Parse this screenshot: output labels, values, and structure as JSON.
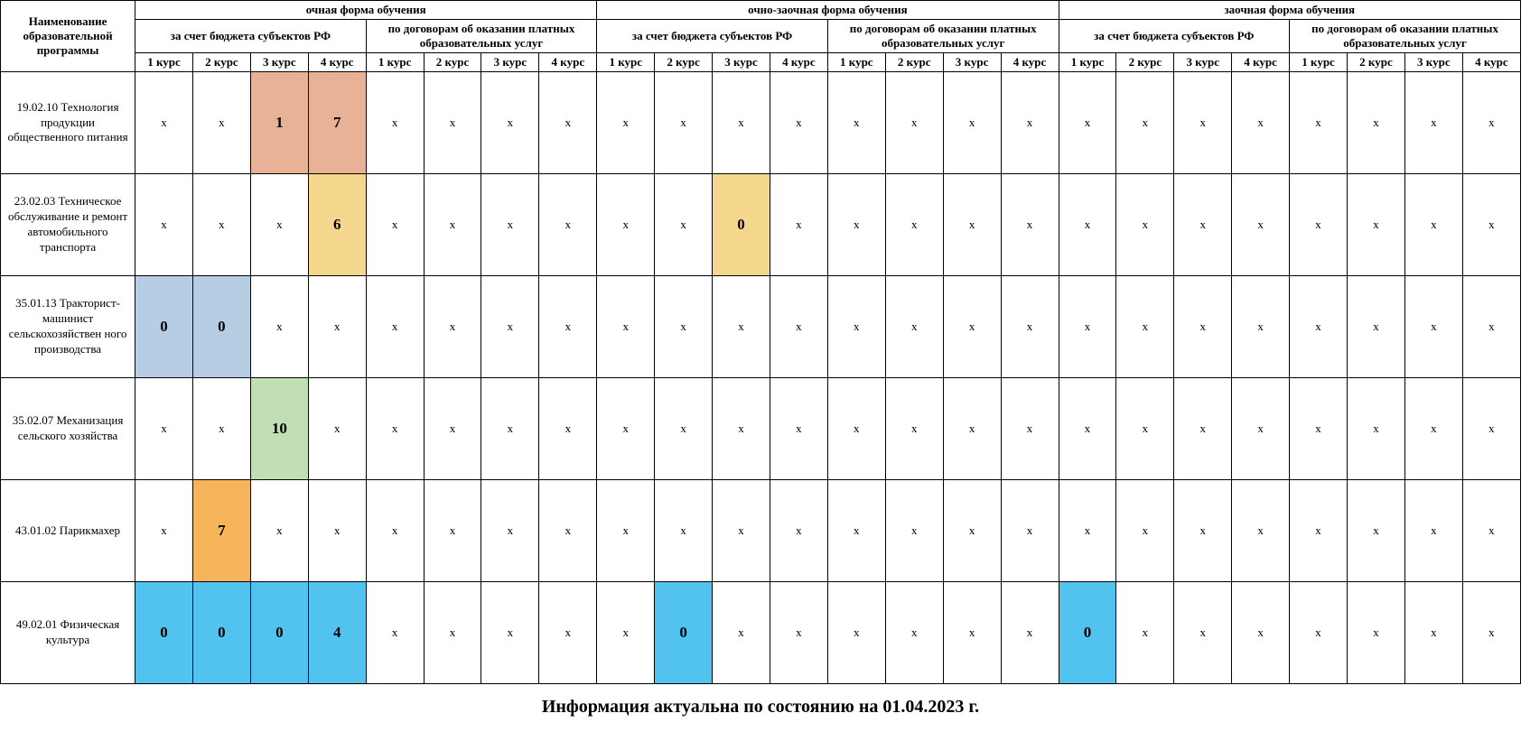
{
  "headers": {
    "program": "Наименование образовательной программы",
    "forms": [
      "очная форма обучения",
      "очно-заочная форма обучения",
      "заочная форма обучения"
    ],
    "funding": [
      "за счет бюджета субъектов РФ",
      "по договорам об оказании платных образовательных услуг"
    ],
    "courses": [
      "1 курс",
      "2 курс",
      "3 курс",
      "4 курс"
    ]
  },
  "cell_colors": {
    "salmon": "#e8b296",
    "peach": "#f6d78e",
    "blue": "#b7cde4",
    "green": "#c0dfb4",
    "orange": "#f6b55a",
    "cyan": "#52c3ef"
  },
  "x": "x",
  "rows": [
    {
      "label": "19.02.10 Технология продукции общественного питания",
      "cells": [
        {
          "v": "x"
        },
        {
          "v": "x"
        },
        {
          "v": "1",
          "c": "salmon",
          "bold": true
        },
        {
          "v": "7",
          "c": "salmon",
          "bold": true
        },
        {
          "v": "x"
        },
        {
          "v": "x"
        },
        {
          "v": "x"
        },
        {
          "v": "x"
        },
        {
          "v": "x"
        },
        {
          "v": "x"
        },
        {
          "v": "x"
        },
        {
          "v": "x"
        },
        {
          "v": "x"
        },
        {
          "v": "x"
        },
        {
          "v": "x"
        },
        {
          "v": "x"
        },
        {
          "v": "x"
        },
        {
          "v": "x"
        },
        {
          "v": "x"
        },
        {
          "v": "x"
        },
        {
          "v": "x"
        },
        {
          "v": "x"
        },
        {
          "v": "x"
        },
        {
          "v": "x"
        }
      ]
    },
    {
      "label": "23.02.03 Техническое обслуживание и ремонт автомобильного транспорта",
      "cells": [
        {
          "v": "x"
        },
        {
          "v": "x"
        },
        {
          "v": "x"
        },
        {
          "v": "6",
          "c": "peach",
          "bold": true
        },
        {
          "v": "x"
        },
        {
          "v": "x"
        },
        {
          "v": "x"
        },
        {
          "v": "x"
        },
        {
          "v": "x"
        },
        {
          "v": "x"
        },
        {
          "v": "0",
          "c": "peach",
          "bold": true
        },
        {
          "v": "x"
        },
        {
          "v": "x"
        },
        {
          "v": "x"
        },
        {
          "v": "x"
        },
        {
          "v": "x"
        },
        {
          "v": "x"
        },
        {
          "v": "x"
        },
        {
          "v": "x"
        },
        {
          "v": "x"
        },
        {
          "v": "x"
        },
        {
          "v": "x"
        },
        {
          "v": "x"
        },
        {
          "v": "x"
        }
      ]
    },
    {
      "label": "35.01.13 Тракторист-машинист сельскохозяйствен ного производства",
      "cells": [
        {
          "v": "0",
          "c": "blue",
          "bold": true
        },
        {
          "v": "0",
          "c": "blue",
          "bold": true
        },
        {
          "v": "x"
        },
        {
          "v": "x"
        },
        {
          "v": "x"
        },
        {
          "v": "x"
        },
        {
          "v": "x"
        },
        {
          "v": "x"
        },
        {
          "v": "x"
        },
        {
          "v": "x"
        },
        {
          "v": "x"
        },
        {
          "v": "x"
        },
        {
          "v": "x"
        },
        {
          "v": "x"
        },
        {
          "v": "x"
        },
        {
          "v": "x"
        },
        {
          "v": "x"
        },
        {
          "v": "x"
        },
        {
          "v": "x"
        },
        {
          "v": "x"
        },
        {
          "v": "x"
        },
        {
          "v": "x"
        },
        {
          "v": "x"
        },
        {
          "v": "x"
        }
      ]
    },
    {
      "label": "35.02.07 Механизация сельского хозяйства",
      "cells": [
        {
          "v": "x"
        },
        {
          "v": "x"
        },
        {
          "v": "10",
          "c": "green",
          "bold": true
        },
        {
          "v": "x"
        },
        {
          "v": "x"
        },
        {
          "v": "x"
        },
        {
          "v": "x"
        },
        {
          "v": "x"
        },
        {
          "v": "x"
        },
        {
          "v": "x"
        },
        {
          "v": "x"
        },
        {
          "v": "x"
        },
        {
          "v": "x"
        },
        {
          "v": "x"
        },
        {
          "v": "x"
        },
        {
          "v": "x"
        },
        {
          "v": "x"
        },
        {
          "v": "x"
        },
        {
          "v": "x"
        },
        {
          "v": "x"
        },
        {
          "v": "x"
        },
        {
          "v": "x"
        },
        {
          "v": "x"
        },
        {
          "v": "x"
        }
      ]
    },
    {
      "label": "43.01.02 Парикмахер",
      "cells": [
        {
          "v": "x"
        },
        {
          "v": "7",
          "c": "orange",
          "bold": true
        },
        {
          "v": "x"
        },
        {
          "v": "x"
        },
        {
          "v": "x"
        },
        {
          "v": "x"
        },
        {
          "v": "x"
        },
        {
          "v": "x"
        },
        {
          "v": "x"
        },
        {
          "v": "x"
        },
        {
          "v": "x"
        },
        {
          "v": "x"
        },
        {
          "v": "x"
        },
        {
          "v": "x"
        },
        {
          "v": "x"
        },
        {
          "v": "x"
        },
        {
          "v": "x"
        },
        {
          "v": "x"
        },
        {
          "v": "x"
        },
        {
          "v": "x"
        },
        {
          "v": "x"
        },
        {
          "v": "x"
        },
        {
          "v": "x"
        },
        {
          "v": "x"
        }
      ]
    },
    {
      "label": "49.02.01 Физическая культура",
      "cells": [
        {
          "v": "0",
          "c": "cyan",
          "bold": true
        },
        {
          "v": "0",
          "c": "cyan",
          "bold": true
        },
        {
          "v": "0",
          "c": "cyan",
          "bold": true
        },
        {
          "v": "4",
          "c": "cyan",
          "bold": true
        },
        {
          "v": "x"
        },
        {
          "v": "x"
        },
        {
          "v": "x"
        },
        {
          "v": "x"
        },
        {
          "v": "x"
        },
        {
          "v": "0",
          "c": "cyan",
          "bold": true
        },
        {
          "v": "x"
        },
        {
          "v": "x"
        },
        {
          "v": "x"
        },
        {
          "v": "x"
        },
        {
          "v": "x"
        },
        {
          "v": "x"
        },
        {
          "v": "0",
          "c": "cyan",
          "bold": true
        },
        {
          "v": "x"
        },
        {
          "v": "x"
        },
        {
          "v": "x"
        },
        {
          "v": "x"
        },
        {
          "v": "x"
        },
        {
          "v": "x"
        },
        {
          "v": "x"
        }
      ]
    }
  ],
  "footer": "Информация актуальна по состоянию на 01.04.2023 г."
}
